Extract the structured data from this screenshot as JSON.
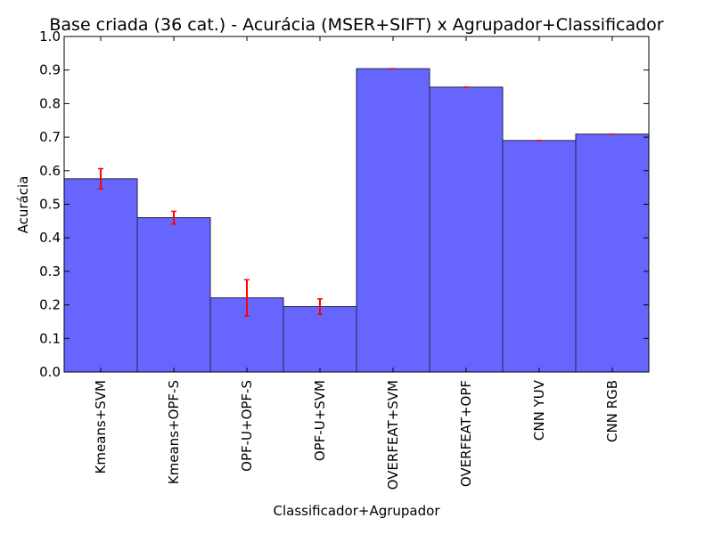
{
  "chart_data": {
    "type": "bar",
    "title": "Base criada (36 cat.) - Acurácia (MSER+SIFT) x Agrupador+Classificador",
    "xlabel": "Classificador+Agrupador",
    "ylabel": "Acurácia",
    "ylim": [
      0,
      1.0
    ],
    "yticks": [
      "0.0",
      "0.1",
      "0.2",
      "0.3",
      "0.4",
      "0.5",
      "0.6",
      "0.7",
      "0.8",
      "0.9",
      "1.0"
    ],
    "grid": false,
    "categories": [
      "Kmeans+SVM",
      "Kmeans+OPF-S",
      "OPF-U+OPF-S",
      "OPF-U+SVM",
      "OVERFEAT+SVM",
      "OVERFEAT+OPF",
      "CNN YUV",
      "CNN RGB"
    ],
    "values": [
      0.576,
      0.46,
      0.221,
      0.195,
      0.904,
      0.849,
      0.69,
      0.709
    ],
    "errors": [
      0.03,
      0.019,
      0.054,
      0.023,
      0.0,
      0.0,
      0.0,
      0.0
    ],
    "bar_color": "#6666ff",
    "bar_edge_color": "#222244",
    "error_color": "#ff0000"
  }
}
